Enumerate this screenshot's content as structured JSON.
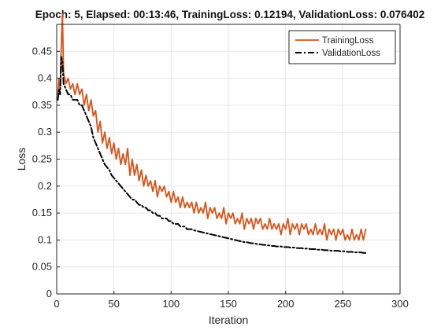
{
  "chart_data": {
    "type": "line",
    "title": "Epoch: 5, Elapsed: 00:13:46, TrainingLoss: 0.12194, ValidationLoss: 0.076402",
    "xlabel": "Iteration",
    "ylabel": "Loss",
    "xlim": [
      0,
      300
    ],
    "ylim": [
      0,
      0.5
    ],
    "xticks": [
      0,
      50,
      100,
      150,
      200,
      250,
      300
    ],
    "yticks": [
      0,
      0.05,
      0.1,
      0.15,
      0.2,
      0.25,
      0.3,
      0.35,
      0.4,
      0.45
    ],
    "xtick_labels": [
      "0",
      "50",
      "100",
      "150",
      "200",
      "250",
      "300"
    ],
    "ytick_labels": [
      "0",
      "0.05",
      "0.1",
      "0.15",
      "0.2",
      "0.25",
      "0.3",
      "0.35",
      "0.4",
      "0.45"
    ],
    "grid": true,
    "legend_position": "top-right",
    "series": [
      {
        "name": "TrainingLoss",
        "color": "#D95319",
        "style": "solid",
        "x": [
          1,
          2,
          3,
          4,
          5,
          6,
          8,
          10,
          12,
          14,
          16,
          18,
          20,
          22,
          24,
          26,
          28,
          30,
          32,
          34,
          36,
          38,
          40,
          42,
          44,
          46,
          48,
          50,
          52,
          54,
          56,
          58,
          60,
          62,
          64,
          66,
          68,
          70,
          72,
          74,
          76,
          78,
          80,
          82,
          84,
          86,
          88,
          90,
          92,
          94,
          96,
          98,
          100,
          102,
          104,
          106,
          108,
          110,
          112,
          114,
          116,
          118,
          120,
          122,
          124,
          126,
          128,
          130,
          132,
          134,
          136,
          138,
          140,
          142,
          144,
          146,
          148,
          150,
          152,
          154,
          156,
          158,
          160,
          162,
          164,
          166,
          168,
          170,
          172,
          174,
          176,
          178,
          180,
          182,
          184,
          186,
          188,
          190,
          192,
          194,
          196,
          198,
          200,
          202,
          204,
          206,
          208,
          210,
          212,
          214,
          216,
          218,
          220,
          222,
          224,
          226,
          228,
          230,
          232,
          234,
          236,
          238,
          240,
          242,
          244,
          246,
          248,
          250,
          252,
          254,
          256,
          258,
          260,
          262,
          264,
          266,
          268,
          270
        ],
        "values": [
          0.37,
          0.4,
          0.38,
          0.46,
          0.52,
          0.41,
          0.39,
          0.4,
          0.38,
          0.39,
          0.37,
          0.39,
          0.37,
          0.38,
          0.35,
          0.37,
          0.34,
          0.36,
          0.33,
          0.34,
          0.3,
          0.32,
          0.28,
          0.3,
          0.27,
          0.29,
          0.26,
          0.28,
          0.25,
          0.27,
          0.24,
          0.26,
          0.24,
          0.27,
          0.22,
          0.25,
          0.22,
          0.24,
          0.21,
          0.23,
          0.2,
          0.22,
          0.2,
          0.21,
          0.19,
          0.21,
          0.18,
          0.2,
          0.19,
          0.2,
          0.18,
          0.19,
          0.17,
          0.19,
          0.17,
          0.18,
          0.16,
          0.18,
          0.16,
          0.17,
          0.16,
          0.17,
          0.15,
          0.17,
          0.15,
          0.16,
          0.15,
          0.17,
          0.14,
          0.16,
          0.15,
          0.16,
          0.14,
          0.15,
          0.14,
          0.16,
          0.13,
          0.15,
          0.14,
          0.15,
          0.13,
          0.14,
          0.13,
          0.15,
          0.12,
          0.14,
          0.13,
          0.14,
          0.12,
          0.14,
          0.13,
          0.14,
          0.12,
          0.13,
          0.12,
          0.14,
          0.12,
          0.13,
          0.12,
          0.13,
          0.11,
          0.13,
          0.12,
          0.14,
          0.11,
          0.13,
          0.12,
          0.13,
          0.11,
          0.13,
          0.12,
          0.13,
          0.11,
          0.12,
          0.11,
          0.13,
          0.11,
          0.12,
          0.11,
          0.13,
          0.1,
          0.12,
          0.11,
          0.12,
          0.1,
          0.12,
          0.11,
          0.12,
          0.1,
          0.11,
          0.1,
          0.12,
          0.1,
          0.11,
          0.1,
          0.12,
          0.1,
          0.12
        ]
      },
      {
        "name": "ValidationLoss",
        "color": "#000000",
        "style": "dash-dot",
        "x": [
          1,
          2,
          3,
          4,
          5,
          6,
          8,
          10,
          12,
          14,
          16,
          18,
          20,
          22,
          24,
          26,
          28,
          30,
          32,
          34,
          36,
          38,
          40,
          42,
          44,
          46,
          48,
          50,
          52,
          54,
          56,
          58,
          60,
          62,
          64,
          66,
          68,
          70,
          72,
          74,
          76,
          78,
          80,
          82,
          84,
          86,
          88,
          90,
          92,
          94,
          96,
          98,
          100,
          102,
          104,
          106,
          108,
          110,
          112,
          114,
          116,
          118,
          120,
          122,
          124,
          126,
          128,
          130,
          132,
          134,
          136,
          138,
          140,
          142,
          144,
          146,
          148,
          150,
          152,
          154,
          156,
          158,
          160,
          162,
          164,
          166,
          168,
          170,
          172,
          174,
          176,
          178,
          180,
          182,
          184,
          186,
          188,
          190,
          192,
          194,
          196,
          198,
          200,
          202,
          204,
          206,
          208,
          210,
          212,
          214,
          216,
          218,
          220,
          222,
          224,
          226,
          228,
          230,
          232,
          234,
          236,
          238,
          240,
          242,
          244,
          246,
          248,
          250,
          252,
          254,
          256,
          258,
          260,
          262,
          264,
          266,
          268,
          270
        ],
        "values": [
          0.36,
          0.38,
          0.37,
          0.44,
          0.43,
          0.39,
          0.38,
          0.37,
          0.37,
          0.36,
          0.36,
          0.36,
          0.35,
          0.35,
          0.34,
          0.33,
          0.32,
          0.31,
          0.29,
          0.28,
          0.27,
          0.26,
          0.25,
          0.24,
          0.235,
          0.23,
          0.22,
          0.215,
          0.21,
          0.205,
          0.2,
          0.195,
          0.19,
          0.185,
          0.18,
          0.175,
          0.175,
          0.17,
          0.165,
          0.165,
          0.16,
          0.16,
          0.155,
          0.155,
          0.15,
          0.15,
          0.145,
          0.145,
          0.14,
          0.14,
          0.14,
          0.135,
          0.135,
          0.13,
          0.13,
          0.13,
          0.125,
          0.125,
          0.125,
          0.12,
          0.12,
          0.12,
          0.118,
          0.117,
          0.116,
          0.115,
          0.114,
          0.113,
          0.112,
          0.111,
          0.11,
          0.109,
          0.108,
          0.107,
          0.106,
          0.105,
          0.104,
          0.103,
          0.102,
          0.101,
          0.1,
          0.099,
          0.098,
          0.097,
          0.096,
          0.096,
          0.095,
          0.094,
          0.094,
          0.093,
          0.092,
          0.092,
          0.091,
          0.091,
          0.09,
          0.09,
          0.089,
          0.089,
          0.088,
          0.088,
          0.088,
          0.087,
          0.087,
          0.087,
          0.086,
          0.086,
          0.086,
          0.085,
          0.085,
          0.085,
          0.084,
          0.084,
          0.084,
          0.083,
          0.083,
          0.083,
          0.082,
          0.082,
          0.082,
          0.081,
          0.081,
          0.081,
          0.08,
          0.08,
          0.08,
          0.08,
          0.079,
          0.079,
          0.079,
          0.078,
          0.078,
          0.078,
          0.077,
          0.077,
          0.077,
          0.077,
          0.076,
          0.076
        ]
      }
    ]
  }
}
